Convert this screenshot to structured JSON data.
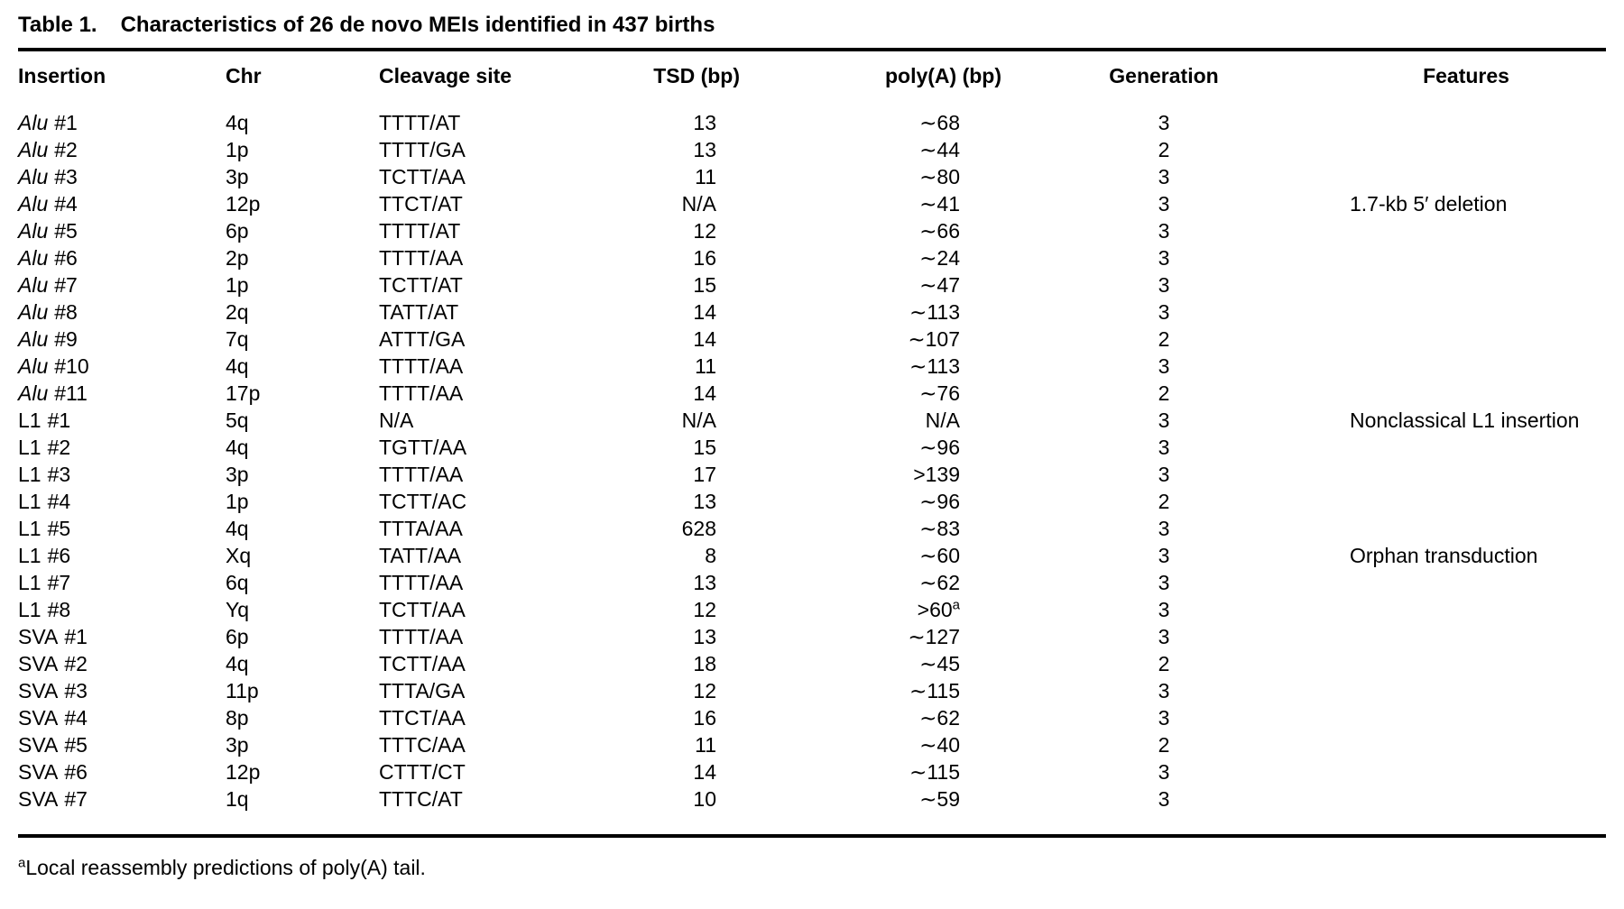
{
  "title": {
    "label": "Table 1.",
    "text": "Characteristics of 26 de novo MEIs identified in 437 births"
  },
  "table": {
    "columns": [
      {
        "label": "Insertion"
      },
      {
        "label": "Chr"
      },
      {
        "label": "Cleavage site"
      },
      {
        "label": "TSD (bp)"
      },
      {
        "label": "poly(A) (bp)"
      },
      {
        "label": "Generation"
      },
      {
        "label": "Features"
      }
    ],
    "rows": [
      {
        "family": "Alu",
        "num": "#1",
        "italic": true,
        "chr": "4q",
        "cleavage": "TTTT/AT",
        "tsd": "13",
        "polyA": "∼68",
        "generation": "3",
        "features": ""
      },
      {
        "family": "Alu",
        "num": "#2",
        "italic": true,
        "chr": "1p",
        "cleavage": "TTTT/GA",
        "tsd": "13",
        "polyA": "∼44",
        "generation": "2",
        "features": ""
      },
      {
        "family": "Alu",
        "num": "#3",
        "italic": true,
        "chr": "3p",
        "cleavage": "TCTT/AA",
        "tsd": "11",
        "polyA": "∼80",
        "generation": "3",
        "features": ""
      },
      {
        "family": "Alu",
        "num": "#4",
        "italic": true,
        "chr": "12p",
        "cleavage": "TTCT/AT",
        "tsd": "N/A",
        "polyA": "∼41",
        "generation": "3",
        "features": "1.7-kb 5′ deletion"
      },
      {
        "family": "Alu",
        "num": "#5",
        "italic": true,
        "chr": "6p",
        "cleavage": "TTTT/AT",
        "tsd": "12",
        "polyA": "∼66",
        "generation": "3",
        "features": ""
      },
      {
        "family": "Alu",
        "num": "#6",
        "italic": true,
        "chr": "2p",
        "cleavage": "TTTT/AA",
        "tsd": "16",
        "polyA": "∼24",
        "generation": "3",
        "features": ""
      },
      {
        "family": "Alu",
        "num": "#7",
        "italic": true,
        "chr": "1p",
        "cleavage": "TCTT/AT",
        "tsd": "15",
        "polyA": "∼47",
        "generation": "3",
        "features": ""
      },
      {
        "family": "Alu",
        "num": "#8",
        "italic": true,
        "chr": "2q",
        "cleavage": "TATT/AT",
        "tsd": "14",
        "polyA": "∼113",
        "generation": "3",
        "features": ""
      },
      {
        "family": "Alu",
        "num": "#9",
        "italic": true,
        "chr": "7q",
        "cleavage": "ATTT/GA",
        "tsd": "14",
        "polyA": "∼107",
        "generation": "2",
        "features": ""
      },
      {
        "family": "Alu",
        "num": "#10",
        "italic": true,
        "chr": "4q",
        "cleavage": "TTTT/AA",
        "tsd": "11",
        "polyA": "∼113",
        "generation": "3",
        "features": ""
      },
      {
        "family": "Alu",
        "num": "#11",
        "italic": true,
        "chr": "17p",
        "cleavage": "TTTT/AA",
        "tsd": "14",
        "polyA": "∼76",
        "generation": "2",
        "features": ""
      },
      {
        "family": "L1",
        "num": "#1",
        "italic": false,
        "chr": "5q",
        "cleavage": "N/A",
        "tsd": "N/A",
        "polyA": "N/A",
        "generation": "3",
        "features": "Nonclassical L1 insertion"
      },
      {
        "family": "L1",
        "num": "#2",
        "italic": false,
        "chr": "4q",
        "cleavage": "TGTT/AA",
        "tsd": "15",
        "polyA": "∼96",
        "generation": "3",
        "features": ""
      },
      {
        "family": "L1",
        "num": "#3",
        "italic": false,
        "chr": "3p",
        "cleavage": "TTTT/AA",
        "tsd": "17",
        "polyA": ">139",
        "generation": "3",
        "features": ""
      },
      {
        "family": "L1",
        "num": "#4",
        "italic": false,
        "chr": "1p",
        "cleavage": "TCTT/AC",
        "tsd": "13",
        "polyA": "∼96",
        "generation": "2",
        "features": ""
      },
      {
        "family": "L1",
        "num": "#5",
        "italic": false,
        "chr": "4q",
        "cleavage": "TTTA/AA",
        "tsd": "628",
        "polyA": "∼83",
        "generation": "3",
        "features": ""
      },
      {
        "family": "L1",
        "num": "#6",
        "italic": false,
        "chr": "Xq",
        "cleavage": "TATT/AA",
        "tsd": "8",
        "polyA": "∼60",
        "generation": "3",
        "features": "Orphan transduction"
      },
      {
        "family": "L1",
        "num": "#7",
        "italic": false,
        "chr": "6q",
        "cleavage": "TTTT/AA",
        "tsd": "13",
        "polyA": "∼62",
        "generation": "3",
        "features": ""
      },
      {
        "family": "L1",
        "num": "#8",
        "italic": false,
        "chr": "Yq",
        "cleavage": "TCTT/AA",
        "tsd": "12",
        "polyA": ">60",
        "polyA_sup": "a",
        "generation": "3",
        "features": ""
      },
      {
        "family": "SVA",
        "num": "#1",
        "italic": false,
        "chr": "6p",
        "cleavage": "TTTT/AA",
        "tsd": "13",
        "polyA": "∼127",
        "generation": "3",
        "features": ""
      },
      {
        "family": "SVA",
        "num": "#2",
        "italic": false,
        "chr": "4q",
        "cleavage": "TCTT/AA",
        "tsd": "18",
        "polyA": "∼45",
        "generation": "2",
        "features": ""
      },
      {
        "family": "SVA",
        "num": "#3",
        "italic": false,
        "chr": "11p",
        "cleavage": "TTTA/GA",
        "tsd": "12",
        "polyA": "∼115",
        "generation": "3",
        "features": ""
      },
      {
        "family": "SVA",
        "num": "#4",
        "italic": false,
        "chr": "8p",
        "cleavage": "TTCT/AA",
        "tsd": "16",
        "polyA": "∼62",
        "generation": "3",
        "features": ""
      },
      {
        "family": "SVA",
        "num": "#5",
        "italic": false,
        "chr": "3p",
        "cleavage": "TTTC/AA",
        "tsd": "11",
        "polyA": "∼40",
        "generation": "2",
        "features": ""
      },
      {
        "family": "SVA",
        "num": "#6",
        "italic": false,
        "chr": "12p",
        "cleavage": "CTTT/CT",
        "tsd": "14",
        "polyA": "∼115",
        "generation": "3",
        "features": ""
      },
      {
        "family": "SVA",
        "num": "#7",
        "italic": false,
        "chr": "1q",
        "cleavage": "TTTC/AT",
        "tsd": "10",
        "polyA": "∼59",
        "generation": "3",
        "features": ""
      }
    ]
  },
  "footnote": {
    "sup": "a",
    "text": "Local reassembly predictions of poly(A) tail."
  }
}
